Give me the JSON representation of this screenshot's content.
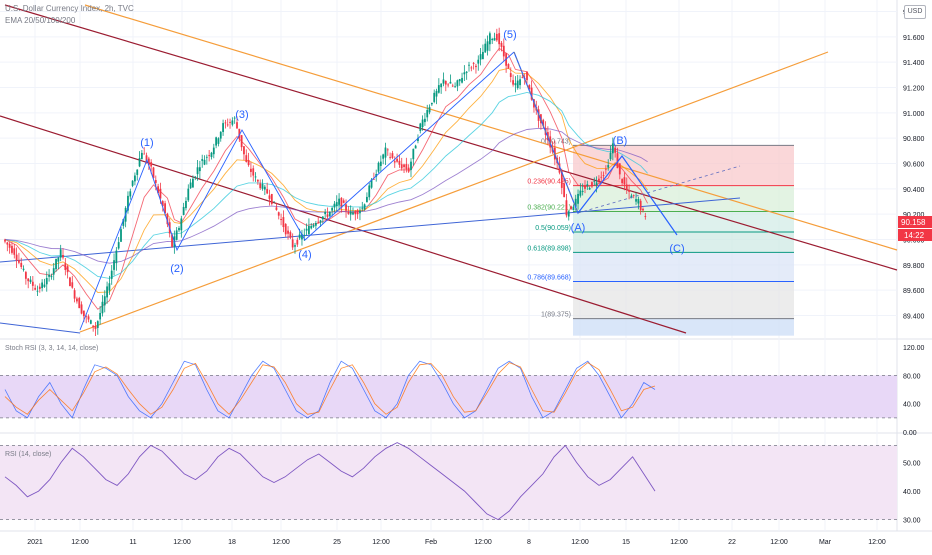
{
  "header": {
    "symbol": "U.S. Dollar Currency Index, 2h, TVC",
    "ema": "EMA 20/50/100/200"
  },
  "currency_button": "USD",
  "price_axis": {
    "ticks": [
      "91.800",
      "91.600",
      "91.400",
      "91.200",
      "91.000",
      "90.800",
      "90.600",
      "90.400",
      "90.200",
      "90.000",
      "89.800",
      "89.600",
      "89.400"
    ],
    "last_price": "90.158",
    "countdown": "14:22",
    "price_color": "#f23645"
  },
  "time_axis": {
    "labels": [
      "2021",
      "12:00",
      "11",
      "12:00",
      "18",
      "12:00",
      "25",
      "12:00",
      "Feb",
      "12:00",
      "8",
      "12:00",
      "15",
      "12:00",
      "22",
      "12:00",
      "Mar",
      "12:00"
    ]
  },
  "waves": [
    "(1)",
    "(2)",
    "(3)",
    "(4)",
    "(5)",
    "(A)",
    "(B)",
    "(C)"
  ],
  "fib_levels": [
    {
      "label": "0(90.743)",
      "value": 90.743,
      "color": "#787b86"
    },
    {
      "label": "0.236(90.425)",
      "value": 90.425,
      "color": "#f23645"
    },
    {
      "label": "0.382(90.221)",
      "value": 90.221,
      "color": "#4caf50"
    },
    {
      "label": "0.5(90.059)",
      "value": 90.059,
      "color": "#089981"
    },
    {
      "label": "0.618(89.898)",
      "value": 89.898,
      "color": "#089981"
    },
    {
      "label": "0.786(89.668)",
      "value": 89.668,
      "color": "#2962ff"
    },
    {
      "label": "1(89.375)",
      "value": 89.375,
      "color": "#787b86"
    }
  ],
  "stoch_panel": {
    "title": "Stoch RSI (3, 3, 14, 14, close)",
    "ticks": [
      "120.00",
      "80.00",
      "40.00",
      "0.00"
    ]
  },
  "rsi_panel": {
    "title": "RSI (14, close)",
    "ticks": [
      "50.00",
      "40.00",
      "30.00"
    ]
  },
  "chart_data": [
    {
      "type": "line",
      "title": "U.S. Dollar Currency Index, 2h, TVC",
      "ylim": [
        89.2,
        91.85
      ],
      "ticks": [
        91.8,
        91.6,
        91.4,
        91.2,
        91.0,
        90.8,
        90.6,
        90.4,
        90.2,
        90.0,
        89.8,
        89.6,
        89.4
      ],
      "series": [
        {
          "name": "",
          "points": [
            [
              0,
              90.0
            ],
            [
              0.5,
              89.9
            ],
            [
              1,
              89.7
            ],
            [
              1.5,
              89.6
            ],
            [
              2,
              89.7
            ],
            [
              2.5,
              89.9
            ],
            [
              3,
              89.6
            ],
            [
              3.5,
              89.4
            ],
            [
              4,
              89.3
            ],
            [
              4.5,
              89.6
            ],
            [
              5,
              90.0
            ],
            [
              5.5,
              90.4
            ],
            [
              6,
              90.7
            ],
            [
              6.4,
              90.55
            ],
            [
              7,
              90.2
            ],
            [
              7.3,
              89.95
            ],
            [
              7.6,
              90.1
            ],
            [
              8,
              90.4
            ],
            [
              8.5,
              90.6
            ],
            [
              9,
              90.7
            ],
            [
              9.5,
              90.9
            ],
            [
              10,
              90.95
            ],
            [
              10.5,
              90.6
            ],
            [
              11,
              90.45
            ],
            [
              11.5,
              90.35
            ],
            [
              12,
              90.15
            ],
            [
              12.5,
              89.95
            ],
            [
              13,
              90.05
            ],
            [
              13.5,
              90.15
            ],
            [
              14,
              90.2
            ],
            [
              14.5,
              90.3
            ],
            [
              15,
              90.2
            ],
            [
              15.5,
              90.25
            ],
            [
              16,
              90.5
            ],
            [
              16.5,
              90.7
            ],
            [
              17,
              90.6
            ],
            [
              17.5,
              90.55
            ],
            [
              18,
              90.9
            ],
            [
              18.5,
              91.1
            ],
            [
              19,
              91.25
            ],
            [
              19.5,
              91.2
            ],
            [
              20,
              91.35
            ],
            [
              20.5,
              91.4
            ],
            [
              21,
              91.6
            ],
            [
              21.3,
              91.6
            ],
            [
              21.7,
              91.4
            ],
            [
              22,
              91.2
            ],
            [
              22.5,
              91.3
            ],
            [
              23,
              91.0
            ],
            [
              23.5,
              90.8
            ],
            [
              24,
              90.55
            ],
            [
              24.3,
              90.21
            ],
            [
              24.7,
              90.3
            ],
            [
              25,
              90.4
            ],
            [
              25.5,
              90.45
            ],
            [
              26,
              90.55
            ],
            [
              26.3,
              90.75
            ],
            [
              26.6,
              90.5
            ],
            [
              27,
              90.35
            ],
            [
              27.4,
              90.3
            ],
            [
              27.7,
              90.158
            ]
          ]
        }
      ]
    },
    {
      "type": "line",
      "title": "Stoch RSI (3, 3, 14, 14, close)",
      "ylim": [
        0,
        130
      ],
      "ticks": [
        120,
        80,
        40,
        0
      ],
      "series": [
        {
          "name": "",
          "values": [
            60,
            30,
            20,
            50,
            70,
            40,
            20,
            60,
            95,
            90,
            80,
            50,
            30,
            20,
            40,
            70,
            100,
            95,
            60,
            30,
            20,
            50,
            80,
            100,
            90,
            60,
            30,
            20,
            30,
            70,
            100,
            90,
            60,
            30,
            20,
            40,
            80,
            100,
            95,
            70,
            40,
            20,
            30,
            60,
            90,
            100,
            90,
            50,
            20,
            30,
            60,
            90,
            100,
            80,
            50,
            20,
            40,
            70,
            60
          ]
        },
        {
          "name": "",
          "values": [
            50,
            35,
            25,
            45,
            60,
            45,
            30,
            55,
            85,
            92,
            82,
            60,
            40,
            25,
            35,
            60,
            90,
            97,
            70,
            40,
            25,
            45,
            70,
            95,
            92,
            70,
            40,
            25,
            28,
            60,
            90,
            95,
            70,
            40,
            25,
            35,
            70,
            95,
            97,
            80,
            50,
            28,
            30,
            55,
            82,
            98,
            92,
            60,
            30,
            28,
            55,
            85,
            98,
            88,
            60,
            30,
            35,
            60,
            65
          ]
        }
      ]
    },
    {
      "type": "line",
      "title": "RSI (14, close)",
      "ylim": [
        26,
        60
      ],
      "ticks": [
        50,
        40,
        30
      ],
      "series": [
        {
          "name": "",
          "values": [
            45,
            42,
            38,
            40,
            44,
            50,
            55,
            52,
            48,
            44,
            42,
            46,
            52,
            56,
            54,
            50,
            46,
            44,
            47,
            52,
            55,
            53,
            49,
            45,
            43,
            45,
            48,
            51,
            53,
            50,
            47,
            45,
            48,
            52,
            55,
            57,
            55,
            52,
            49,
            46,
            43,
            40,
            36,
            32,
            30,
            33,
            38,
            42,
            46,
            52,
            56,
            50,
            45,
            42,
            44,
            48,
            52,
            46,
            40
          ]
        }
      ]
    }
  ]
}
